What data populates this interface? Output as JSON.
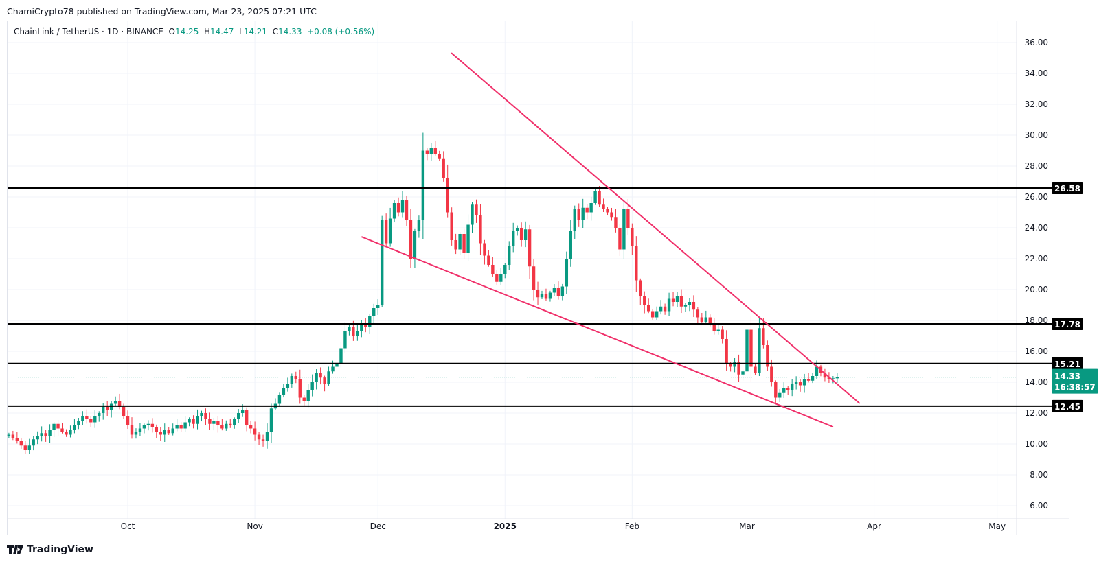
{
  "header": {
    "published": "ChamiCrypto78 published on TradingView.com, Mar 23, 2025 07:21 UTC"
  },
  "legend": {
    "symbol": "ChainLink / TetherUS · 1D · BINANCE",
    "o_label": "O",
    "o": "14.25",
    "h_label": "H",
    "h": "14.47",
    "l_label": "L",
    "l": "14.21",
    "c_label": "C",
    "c": "14.33",
    "change": "+0.08 (+0.56%)"
  },
  "brand": {
    "name": "TradingView"
  },
  "colors": {
    "up": "#089981",
    "down": "#f23645",
    "trend": "#f0306a",
    "level": "#000000",
    "grid": "#f0f3fa"
  },
  "chart_data": {
    "type": "candlestick",
    "title": "ChainLink / TetherUS · 1D · BINANCE",
    "start_date": "2024-09-02",
    "closes": [
      10.6,
      10.4,
      10.2,
      9.9,
      9.6,
      9.9,
      10.3,
      10.5,
      10.7,
      10.5,
      10.9,
      11.3,
      11.0,
      10.8,
      10.6,
      10.9,
      11.2,
      11.5,
      11.8,
      11.6,
      11.4,
      11.8,
      12.0,
      12.4,
      12.2,
      12.6,
      12.8,
      12.4,
      11.8,
      11.2,
      10.6,
      10.8,
      11.0,
      11.2,
      11.3,
      11.1,
      10.8,
      10.6,
      10.9,
      10.7,
      11.0,
      11.2,
      11.0,
      11.4,
      11.6,
      11.3,
      11.8,
      12.0,
      11.6,
      11.3,
      11.5,
      11.2,
      11.0,
      11.3,
      11.2,
      11.6,
      12.0,
      12.2,
      11.2,
      11.0,
      10.6,
      10.3,
      10.2,
      10.8,
      12.3,
      12.6,
      13.2,
      13.6,
      13.9,
      14.4,
      14.2,
      13.0,
      12.8,
      13.5,
      14.0,
      14.6,
      14.3,
      13.9,
      14.7,
      15.0,
      15.2,
      16.2,
      17.3,
      17.6,
      17.0,
      17.3,
      17.8,
      17.6,
      18.3,
      18.8,
      19.0,
      24.5,
      23.0,
      24.6,
      25.6,
      25.0,
      25.8,
      24.5,
      22.0,
      23.8,
      24.5,
      29.0,
      28.8,
      29.2,
      28.8,
      28.5,
      27.2,
      25.0,
      23.2,
      22.6,
      23.6,
      22.4,
      24.2,
      25.5,
      24.8,
      23.0,
      22.2,
      21.6,
      21.0,
      20.5,
      21.0,
      21.6,
      22.8,
      23.8,
      24.0,
      23.2,
      23.9,
      21.5,
      20.0,
      19.5,
      19.7,
      19.4,
      19.8,
      20.1,
      19.6,
      20.2,
      22.0,
      23.8,
      25.2,
      24.5,
      25.3,
      25.0,
      25.6,
      26.4,
      25.5,
      25.2,
      25.0,
      24.7,
      24.0,
      22.6,
      25.2,
      24.0,
      22.8,
      20.6,
      19.6,
      19.0,
      18.6,
      18.2,
      18.6,
      18.9,
      18.6,
      19.4,
      19.2,
      19.6,
      18.9,
      19.0,
      19.2,
      18.7,
      18.2,
      17.9,
      18.2,
      17.8,
      17.3,
      17.4,
      16.8,
      15.2,
      15.0,
      15.3,
      14.5,
      14.7,
      17.4,
      15.0,
      14.6,
      17.5,
      16.4,
      15.0,
      14.0,
      13.0,
      13.3,
      13.6,
      13.5,
      13.9,
      14.0,
      13.8,
      14.2,
      14.1,
      14.4,
      15.0,
      14.6,
      14.3,
      14.2,
      14.25,
      14.33
    ],
    "y_ticks": [
      "36.00",
      "34.00",
      "32.00",
      "30.00",
      "28.00",
      "26.00",
      "24.00",
      "22.00",
      "20.00",
      "18.00",
      "16.00",
      "14.00",
      "12.00",
      "10.00",
      "8.00",
      "6.00"
    ],
    "ylim": [
      6,
      36
    ],
    "x_ticks": [
      {
        "label": "Oct",
        "day": 29
      },
      {
        "label": "Nov",
        "day": 60
      },
      {
        "label": "Dec",
        "day": 90
      },
      {
        "label": "2025",
        "day": 121
      },
      {
        "label": "Feb",
        "day": 152
      },
      {
        "label": "Mar",
        "day": 180
      },
      {
        "label": "Apr",
        "day": 211
      },
      {
        "label": "May",
        "day": 241
      }
    ],
    "levels": [
      {
        "price": 26.58,
        "label": "26.58"
      },
      {
        "price": 17.78,
        "label": "17.78"
      },
      {
        "price": 15.21,
        "label": "15.21"
      },
      {
        "price": 12.45,
        "label": "12.45"
      }
    ],
    "trendlines": [
      {
        "name": "upper-trendline",
        "from": {
          "day": 107.9,
          "price": 35.33
        },
        "to": {
          "day": 207.5,
          "price": 12.62
        }
      },
      {
        "name": "lower-trendline",
        "from": {
          "day": 86,
          "price": 23.42
        },
        "to": {
          "day": 201,
          "price": 11.11
        }
      }
    ],
    "last_price": {
      "price": 14.33,
      "label": "14.33",
      "countdown": "16:38:57"
    }
  }
}
